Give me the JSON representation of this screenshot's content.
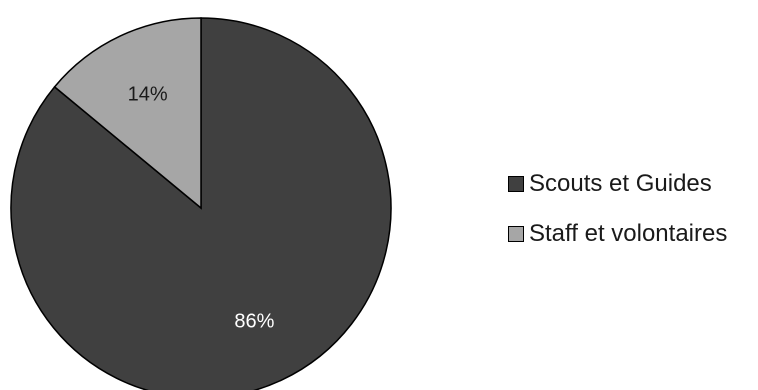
{
  "chart_data": {
    "type": "pie",
    "categories": [
      "Scouts et Guides",
      "Staff et volontaires"
    ],
    "values": [
      86,
      14
    ],
    "data_labels": [
      "86%",
      "14%"
    ],
    "colors": [
      "#404040",
      "#a6a6a6"
    ],
    "label_colors": [
      "#ffffff",
      "#1a1a1a"
    ],
    "title": "",
    "legend_position": "right"
  }
}
